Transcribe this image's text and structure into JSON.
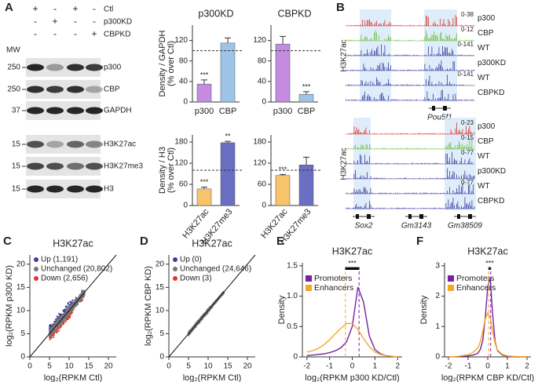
{
  "panels": [
    "A",
    "B",
    "C",
    "D",
    "E",
    "F"
  ],
  "blot": {
    "mw_label": "MW",
    "treatments": [
      {
        "label": "Ctl",
        "signs": [
          "+",
          "-",
          "+",
          "-"
        ]
      },
      {
        "label": "p300KD",
        "signs": [
          "-",
          "+",
          "-",
          "-"
        ]
      },
      {
        "label": "CBPKD",
        "signs": [
          "-",
          "-",
          "-",
          "+"
        ]
      }
    ],
    "bands": [
      {
        "label": "p300",
        "mw": 250
      },
      {
        "label": "CBP",
        "mw": 250
      },
      {
        "label": "GAPDH",
        "mw": 37
      },
      {
        "label": "H3K27ac",
        "mw": 15
      },
      {
        "label": "H3K27me3",
        "mw": 15
      },
      {
        "label": "H3",
        "mw": 15
      }
    ]
  },
  "tracks": [
    {
      "mark_label": "H3K27ac",
      "genes": [
        "Pou5f1"
      ],
      "rows": [
        {
          "label": "p300",
          "range": "0-38"
        },
        {
          "label": "CBP",
          "range": "0-12"
        },
        {
          "label": "WT",
          "range": "0-141"
        },
        {
          "label": "p300KD"
        },
        {
          "label": "WT",
          "range": "0-141"
        },
        {
          "label": "CBPKD"
        }
      ]
    },
    {
      "mark_label": "H3K27ac",
      "genes": [
        "Sox2",
        "Gm3143",
        "Gm38509"
      ],
      "rows": [
        {
          "label": "p300",
          "range": "0-23"
        },
        {
          "label": "CBP",
          "range": "0-15"
        },
        {
          "label": "WT",
          "range": "0-77"
        },
        {
          "label": "p300KD"
        },
        {
          "label": "WT",
          "range": "0-77"
        },
        {
          "label": "CBPKD"
        }
      ]
    }
  ],
  "chart_data": [
    {
      "type": "bar",
      "title": "p300KD",
      "ylabel": [
        "Density / GAPDH",
        "(% over Ctl)"
      ],
      "categories": [
        "p300",
        "CBP"
      ],
      "values": [
        35,
        115
      ],
      "errors": [
        8,
        10
      ],
      "colors": [
        "#c48be0",
        "#9dc3e6"
      ],
      "significance": [
        "***",
        null
      ],
      "reference_line": 100,
      "ylim": [
        0,
        150
      ],
      "yticks": [
        0,
        40,
        80,
        120
      ]
    },
    {
      "type": "bar",
      "title": "CBPKD",
      "categories": [
        "p300",
        "CBP"
      ],
      "values": [
        113,
        15
      ],
      "errors": [
        15,
        5
      ],
      "colors": [
        "#c48be0",
        "#9dc3e6"
      ],
      "significance": [
        null,
        "***"
      ],
      "reference_line": 100,
      "ylim": [
        0,
        150
      ],
      "yticks": [
        0,
        40,
        80,
        120
      ]
    },
    {
      "type": "bar",
      "ylabel": [
        "Density / H3",
        "(% over Ctl)"
      ],
      "categories": [
        "H3K27ac",
        "H3K27me3"
      ],
      "values": [
        47,
        178
      ],
      "errors": [
        5,
        4
      ],
      "colors": [
        "#f7c36b",
        "#6a6fc4"
      ],
      "significance": [
        "***",
        "**"
      ],
      "reference_line": 100,
      "rotate_labels": true,
      "ylim": [
        0,
        200
      ],
      "yticks": [
        0,
        60,
        120,
        180
      ]
    },
    {
      "type": "bar",
      "categories": [
        "H3K27ac",
        "H3K27me3"
      ],
      "values": [
        85,
        115
      ],
      "errors": [
        3,
        22
      ],
      "colors": [
        "#f7c36b",
        "#6a6fc4"
      ],
      "significance": [
        "***",
        null
      ],
      "reference_line": 100,
      "rotate_labels": true,
      "ylim": [
        0,
        200
      ],
      "yticks": [
        0,
        60,
        120,
        180
      ]
    },
    {
      "type": "scatter",
      "title": "H3K27ac",
      "xlabel": "log₂(RPKM Ctl)",
      "ylabel": "log₂(RPKM p300 KD)",
      "series": [
        {
          "name": "Up (1,191)",
          "color": "#3a3d9e"
        },
        {
          "name": "Unchanged (20,802)",
          "color": "#777777"
        },
        {
          "name": "Down (2,656)",
          "color": "#e8322b"
        }
      ],
      "xlim": [
        0,
        22
      ],
      "ylim": [
        0,
        22
      ],
      "xticks": [
        0,
        5,
        10,
        15,
        20
      ],
      "yticks": [
        0,
        5,
        10,
        15,
        20
      ]
    },
    {
      "type": "scatter",
      "title": "H3K27ac",
      "xlabel": "log₂(RPKM Ctl)",
      "ylabel": "log₂(RPKM CBP KD)",
      "series": [
        {
          "name": "Up (0)",
          "color": "#3a3d9e"
        },
        {
          "name": "Unchanged (24,646)",
          "color": "#777777"
        },
        {
          "name": "Down (3)",
          "color": "#e8322b"
        }
      ],
      "xlim": [
        0,
        22
      ],
      "ylim": [
        0,
        22
      ],
      "xticks": [
        0,
        5,
        10,
        15,
        20
      ],
      "yticks": [
        0,
        5,
        10,
        15,
        20
      ]
    },
    {
      "type": "density",
      "title": "H3K27ac",
      "xlabel": "log₂(RPKM p300 KD/Ctl)",
      "ylabel": "Density",
      "significance": "***",
      "x": [
        -2,
        -1.75,
        -1.5,
        -1.25,
        -1,
        -0.75,
        -0.5,
        -0.25,
        0,
        0.25,
        0.5,
        0.75,
        1,
        1.25,
        1.5,
        1.75,
        2
      ],
      "series": [
        {
          "name": "Promoters",
          "color": "#7a1fa2",
          "median": 0.3,
          "values": [
            0.02,
            0.03,
            0.04,
            0.05,
            0.07,
            0.1,
            0.15,
            0.25,
            0.5,
            1.15,
            0.9,
            0.35,
            0.12,
            0.05,
            0.02,
            0.01,
            0
          ]
        },
        {
          "name": "Enhancers",
          "color": "#f5a623",
          "median": -0.3,
          "values": [
            0.08,
            0.1,
            0.14,
            0.2,
            0.28,
            0.38,
            0.47,
            0.55,
            0.55,
            0.45,
            0.3,
            0.17,
            0.08,
            0.04,
            0.02,
            0.01,
            0
          ]
        }
      ],
      "xlim": [
        -2.2,
        2.2
      ],
      "ylim": [
        0,
        1.55
      ],
      "xticks": [
        -2,
        -1,
        0,
        1,
        2
      ],
      "yticks": [
        0,
        0.5,
        {
          "value": 1,
          "label": "1.0"
        },
        1.5
      ]
    },
    {
      "type": "density",
      "title": "H3K27ac",
      "xlabel": "log₂(RPKM CBP KD/Ctl)",
      "ylabel": "Density",
      "significance": "***",
      "x": [
        -2,
        -1.5,
        -1,
        -0.75,
        -0.5,
        -0.375,
        -0.25,
        -0.125,
        0,
        0.125,
        0.25,
        0.375,
        0.5,
        0.75,
        1,
        1.5,
        2
      ],
      "series": [
        {
          "name": "Promoters",
          "color": "#7a1fa2",
          "median": 0.15,
          "values": [
            0,
            0.01,
            0.03,
            0.06,
            0.12,
            0.25,
            0.55,
            1.3,
            2.3,
            2.6,
            1.4,
            0.5,
            0.2,
            0.06,
            0.02,
            0,
            0
          ]
        },
        {
          "name": "Enhancers",
          "color": "#f5a623",
          "median": 0.05,
          "values": [
            0,
            0.02,
            0.07,
            0.15,
            0.3,
            0.5,
            0.85,
            1.25,
            1.45,
            1.3,
            0.85,
            0.45,
            0.22,
            0.08,
            0.03,
            0.01,
            0
          ]
        }
      ],
      "xlim": [
        -2.2,
        2.2
      ],
      "ylim": [
        0,
        3.1
      ],
      "xticks": [
        -2,
        -1,
        0,
        1,
        2
      ],
      "yticks": [
        0,
        1,
        2,
        3
      ]
    }
  ]
}
